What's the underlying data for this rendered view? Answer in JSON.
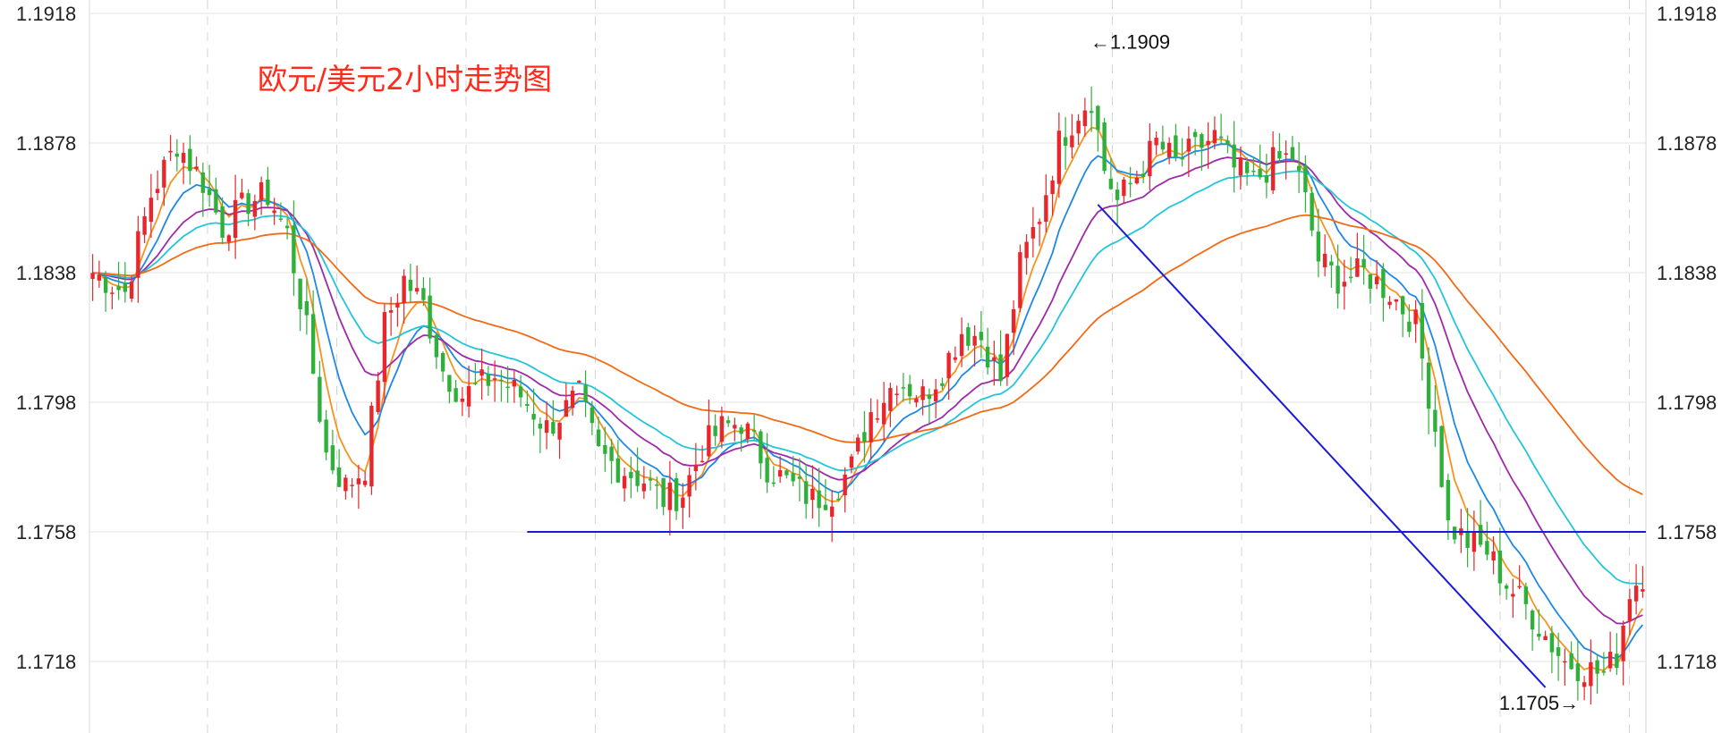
{
  "chart_data": {
    "type": "candlestick",
    "title": "欧元/美元2小时走势图",
    "y_ticks": [
      "1.1918",
      "1.1878",
      "1.1838",
      "1.1798",
      "1.1758",
      "1.1718"
    ],
    "y_tick_values": [
      1.1918,
      1.1878,
      1.1838,
      1.1798,
      1.1758,
      1.1718
    ],
    "ylim": [
      1.17,
      1.192
    ],
    "grid": true,
    "x_count": 240,
    "annotations": [
      {
        "text": "←1.1909",
        "value": 1.1909,
        "index": 153,
        "side": "right"
      },
      {
        "text": "1.1705→",
        "value": 1.1705,
        "index": 230,
        "side": "left"
      }
    ],
    "support_line": {
      "value": 1.1758,
      "from_index": 67
    },
    "trend_line": {
      "from": {
        "index": 155,
        "value": 1.1859
      },
      "to": {
        "index": 224,
        "value": 1.171
      }
    },
    "colors": {
      "up": "#e8262b",
      "down": "#2fb03a",
      "support": "#1a1adb",
      "trend": "#1a1adb",
      "ma": [
        "#f5931e",
        "#1e88e5",
        "#9e2aa8",
        "#22c6d8",
        "#f26a15"
      ]
    },
    "price_path": [
      [
        0,
        1.1838
      ],
      [
        5,
        1.1832
      ],
      [
        9,
        1.1862
      ],
      [
        13,
        1.1878
      ],
      [
        17,
        1.1866
      ],
      [
        20,
        1.1852
      ],
      [
        24,
        1.186
      ],
      [
        27,
        1.1862
      ],
      [
        30,
        1.185
      ],
      [
        33,
        1.182
      ],
      [
        36,
        1.1782
      ],
      [
        39,
        1.1772
      ],
      [
        42,
        1.1778
      ],
      [
        45,
        1.1822
      ],
      [
        48,
        1.1836
      ],
      [
        51,
        1.1828
      ],
      [
        54,
        1.1808
      ],
      [
        57,
        1.18
      ],
      [
        62,
        1.1806
      ],
      [
        66,
        1.18
      ],
      [
        70,
        1.179
      ],
      [
        75,
        1.18
      ],
      [
        78,
        1.1782
      ],
      [
        81,
        1.1778
      ],
      [
        85,
        1.1774
      ],
      [
        88,
        1.1768
      ],
      [
        91,
        1.177
      ],
      [
        94,
        1.1784
      ],
      [
        97,
        1.179
      ],
      [
        100,
        1.1792
      ],
      [
        104,
        1.1778
      ],
      [
        108,
        1.1772
      ],
      [
        111,
        1.1768
      ],
      [
        114,
        1.177
      ],
      [
        117,
        1.1778
      ],
      [
        120,
        1.1795
      ],
      [
        124,
        1.1805
      ],
      [
        128,
        1.18
      ],
      [
        131,
        1.1808
      ],
      [
        134,
        1.182
      ],
      [
        137,
        1.1818
      ],
      [
        140,
        1.1805
      ],
      [
        143,
        1.184
      ],
      [
        146,
        1.1856
      ],
      [
        149,
        1.1878
      ],
      [
        152,
        1.1888
      ],
      [
        154,
        1.1892
      ],
      [
        156,
        1.187
      ],
      [
        158,
        1.186
      ],
      [
        161,
        1.1868
      ],
      [
        164,
        1.1878
      ],
      [
        167,
        1.1872
      ],
      [
        170,
        1.1876
      ],
      [
        173,
        1.188
      ],
      [
        176,
        1.187
      ],
      [
        179,
        1.1866
      ],
      [
        182,
        1.1872
      ],
      [
        185,
        1.1874
      ],
      [
        187,
        1.186
      ],
      [
        189,
        1.1842
      ],
      [
        192,
        1.1836
      ],
      [
        196,
        1.1838
      ],
      [
        200,
        1.1832
      ],
      [
        204,
        1.1822
      ],
      [
        207,
        1.179
      ],
      [
        209,
        1.176
      ],
      [
        212,
        1.1755
      ],
      [
        215,
        1.1752
      ],
      [
        218,
        1.1742
      ],
      [
        221,
        1.1735
      ],
      [
        224,
        1.1726
      ],
      [
        227,
        1.1718
      ],
      [
        230,
        1.1716
      ],
      [
        233,
        1.1714
      ],
      [
        235,
        1.172
      ],
      [
        237,
        1.174
      ],
      [
        239,
        1.1745
      ]
    ]
  }
}
